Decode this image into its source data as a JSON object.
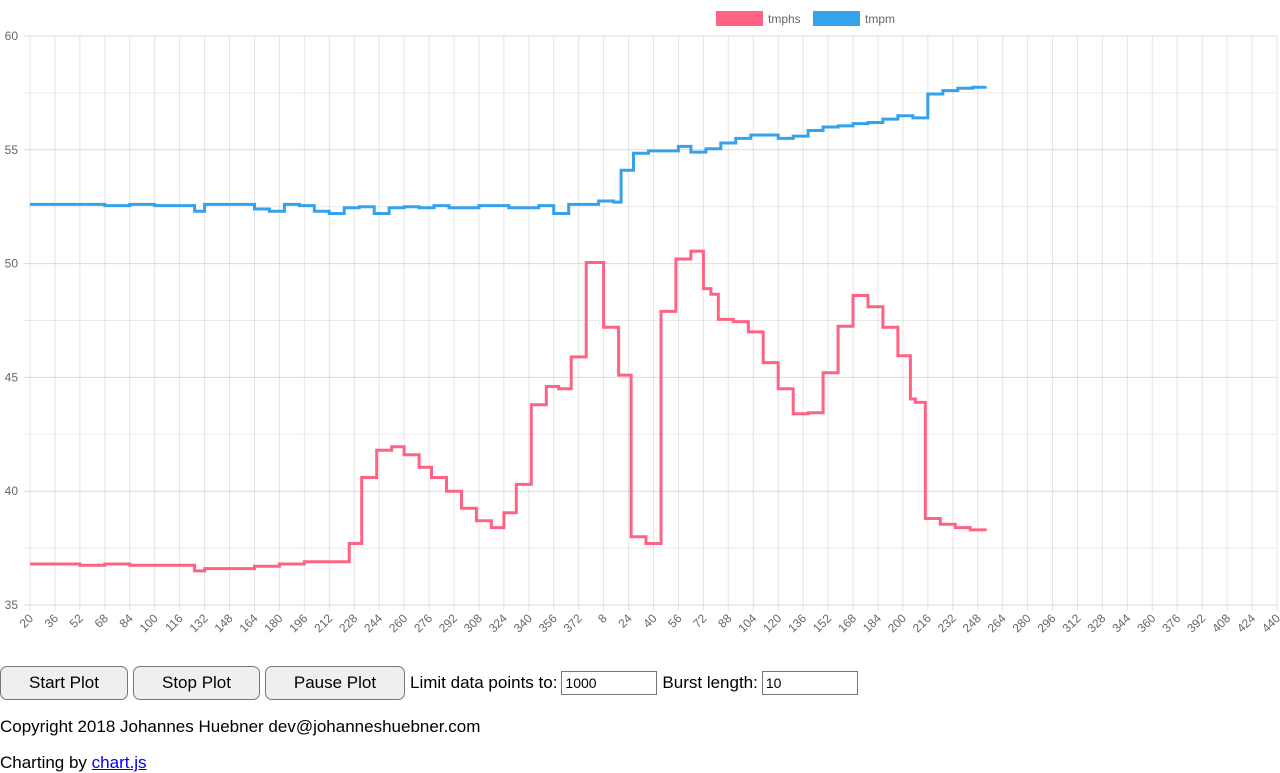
{
  "chart_data": {
    "type": "line",
    "legend": {
      "position": "top",
      "entries": [
        "tmphs",
        "tmpm"
      ]
    },
    "grid": true,
    "ylim": [
      35,
      60
    ],
    "y_ticks": [
      "35",
      "40",
      "45",
      "50",
      "55",
      "60"
    ],
    "x_tick_labels": [
      "20",
      "36",
      "52",
      "68",
      "84",
      "100",
      "116",
      "132",
      "148",
      "164",
      "180",
      "196",
      "212",
      "228",
      "244",
      "260",
      "276",
      "292",
      "308",
      "324",
      "340",
      "356",
      "372",
      "8",
      "24",
      "40",
      "56",
      "72",
      "88",
      "104",
      "120",
      "136",
      "152",
      "168",
      "184",
      "200",
      "216",
      "232",
      "248",
      "264",
      "280",
      "296",
      "312",
      "328",
      "344",
      "360",
      "376",
      "392",
      "408",
      "424",
      "440"
    ],
    "series": [
      {
        "name": "tmphs",
        "color": "#ff6384",
        "points": [
          [
            0,
            36.8
          ],
          [
            1,
            36.8
          ],
          [
            2,
            36.75
          ],
          [
            3,
            36.8
          ],
          [
            4,
            36.75
          ],
          [
            5,
            36.75
          ],
          [
            6,
            36.75
          ],
          [
            6.6,
            36.5
          ],
          [
            7,
            36.6
          ],
          [
            8,
            36.6
          ],
          [
            9,
            36.7
          ],
          [
            10,
            36.8
          ],
          [
            10.7,
            36.8
          ],
          [
            11,
            36.9
          ],
          [
            12,
            36.9
          ],
          [
            12.8,
            37.7
          ],
          [
            13.3,
            40.6
          ],
          [
            13.9,
            41.8
          ],
          [
            14.5,
            41.95
          ],
          [
            15,
            41.6
          ],
          [
            15.6,
            41.05
          ],
          [
            16.1,
            40.6
          ],
          [
            16.7,
            40.0
          ],
          [
            17.3,
            39.25
          ],
          [
            17.9,
            38.7
          ],
          [
            18.5,
            38.4
          ],
          [
            19,
            39.05
          ],
          [
            19.5,
            40.3
          ],
          [
            20.1,
            43.8
          ],
          [
            20.7,
            44.6
          ],
          [
            21.2,
            44.5
          ],
          [
            21.7,
            45.9
          ],
          [
            22.3,
            50.05
          ],
          [
            23,
            47.2
          ],
          [
            23.6,
            45.1
          ],
          [
            24.1,
            38.0
          ],
          [
            24.7,
            37.7
          ],
          [
            25.3,
            47.9
          ],
          [
            25.9,
            50.2
          ],
          [
            26.5,
            50.55
          ],
          [
            27,
            48.9
          ],
          [
            27.3,
            48.65
          ],
          [
            27.6,
            47.55
          ],
          [
            28.2,
            47.45
          ],
          [
            28.8,
            47.0
          ],
          [
            29.4,
            45.65
          ],
          [
            30,
            44.5
          ],
          [
            30.6,
            43.4
          ],
          [
            31.2,
            43.45
          ],
          [
            31.8,
            45.2
          ],
          [
            32.4,
            47.25
          ],
          [
            33,
            48.6
          ],
          [
            33.6,
            48.1
          ],
          [
            34.2,
            47.2
          ],
          [
            34.8,
            45.95
          ],
          [
            35.3,
            44.05
          ],
          [
            35.5,
            43.9
          ],
          [
            35.9,
            38.8
          ],
          [
            36.5,
            38.55
          ],
          [
            37.1,
            38.4
          ],
          [
            37.7,
            38.3
          ],
          [
            38.3,
            38.25
          ]
        ]
      },
      {
        "name": "tmpm",
        "color": "#36a2eb",
        "points": [
          [
            0,
            52.6
          ],
          [
            1,
            52.6
          ],
          [
            2,
            52.6
          ],
          [
            3,
            52.55
          ],
          [
            4,
            52.6
          ],
          [
            5,
            52.55
          ],
          [
            5.4,
            52.55
          ],
          [
            6.6,
            52.3
          ],
          [
            7,
            52.6
          ],
          [
            8,
            52.6
          ],
          [
            9,
            52.4
          ],
          [
            9.6,
            52.3
          ],
          [
            10.2,
            52.6
          ],
          [
            10.8,
            52.55
          ],
          [
            11.4,
            52.3
          ],
          [
            12,
            52.2
          ],
          [
            12.6,
            52.45
          ],
          [
            13.2,
            52.5
          ],
          [
            13.8,
            52.2
          ],
          [
            14.4,
            52.45
          ],
          [
            15,
            52.5
          ],
          [
            15.6,
            52.45
          ],
          [
            16.2,
            52.55
          ],
          [
            16.8,
            52.45
          ],
          [
            17.4,
            52.45
          ],
          [
            18,
            52.55
          ],
          [
            18.6,
            52.55
          ],
          [
            19.2,
            52.45
          ],
          [
            19.8,
            52.45
          ],
          [
            20.4,
            52.55
          ],
          [
            21,
            52.2
          ],
          [
            21.6,
            52.6
          ],
          [
            22.2,
            52.6
          ],
          [
            22.8,
            52.75
          ],
          [
            23.4,
            52.7
          ],
          [
            23.7,
            54.1
          ],
          [
            24.2,
            54.85
          ],
          [
            24.8,
            54.95
          ],
          [
            25.4,
            54.95
          ],
          [
            26,
            55.15
          ],
          [
            26.5,
            54.9
          ],
          [
            27.1,
            55.05
          ],
          [
            27.7,
            55.3
          ],
          [
            28.3,
            55.5
          ],
          [
            28.9,
            55.65
          ],
          [
            29.5,
            55.65
          ],
          [
            30,
            55.5
          ],
          [
            30.6,
            55.6
          ],
          [
            31.2,
            55.85
          ],
          [
            31.8,
            56.0
          ],
          [
            32.4,
            56.05
          ],
          [
            33,
            56.15
          ],
          [
            33.6,
            56.2
          ],
          [
            34.2,
            56.35
          ],
          [
            34.8,
            56.5
          ],
          [
            35.4,
            56.4
          ],
          [
            36,
            57.45
          ],
          [
            36.6,
            57.6
          ],
          [
            37.2,
            57.7
          ],
          [
            37.8,
            57.75
          ],
          [
            38.3,
            57.8
          ]
        ]
      }
    ]
  },
  "controls": {
    "start_label": "Start Plot",
    "stop_label": "Stop Plot",
    "pause_label": "Pause Plot",
    "limit_label": "Limit data points to:",
    "limit_value": "1000",
    "burst_label": "Burst length:",
    "burst_value": "10"
  },
  "footer": {
    "copyright": "Copyright 2018 Johannes Huebner dev@johanneshuebner.com",
    "charting_prefix": "Charting by",
    "charting_link": "chart.js"
  }
}
